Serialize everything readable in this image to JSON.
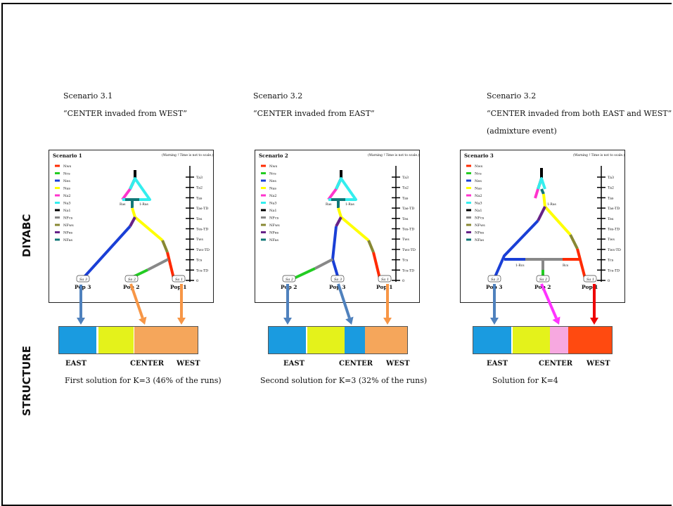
{
  "side_labels": {
    "diyabc": "DIYABC",
    "structure": "STRUCTURE"
  },
  "scenarios": [
    {
      "title": "Scenario 3.1",
      "subtitle": "“CENTER invaded from WEST”",
      "note": "",
      "box_title": "Scenario 1",
      "warning": "(Warning ! Time is not to scale.)",
      "split_labels": [
        "Ras",
        "1-Ras"
      ],
      "admix_labels": [],
      "samples": [
        "Sa 3",
        "Sa 2",
        "Sa 1"
      ],
      "pops": [
        "Pop 3",
        "Pop 2",
        "Pop 1"
      ],
      "solution": "First solution for K=3 (46% of the runs)",
      "bar_labels": [
        "EAST",
        "CENTER",
        "WEST"
      ]
    },
    {
      "title": "Scenario 3.2",
      "subtitle": "“CENTER invaded from EAST”",
      "note": "",
      "box_title": "Scenario 2",
      "warning": "(Warning ! Time is not to scale.)",
      "split_labels": [
        "Ras",
        "1-Ras"
      ],
      "admix_labels": [],
      "samples": [
        "Sa 2",
        "Sa 3",
        "Sa 1"
      ],
      "pops": [
        "Pop 2",
        "Pop 3",
        "Pop 1"
      ],
      "solution": "Second solution for K=3 (32% of the runs)",
      "bar_labels": [
        "EAST",
        "CENTER",
        "WEST"
      ]
    },
    {
      "title": "Scenario 3.2",
      "subtitle": "“CENTER invaded from both EAST and WEST”",
      "note": "(admixture event)",
      "box_title": "Scenario 3",
      "warning": "(Warning ! Time is not to scale.)",
      "split_labels": [
        "",
        "1-Ras"
      ],
      "admix_labels": [
        "1-Rcs",
        "Rcs"
      ],
      "samples": [
        "Sa 3",
        "Sa 2",
        "Sa 1"
      ],
      "pops": [
        "Pop 3",
        "Pop 2",
        "Pop 1"
      ],
      "solution": "Solution for K=4",
      "bar_labels": [
        "EAST",
        "CENTER",
        "WEST"
      ]
    }
  ],
  "legend": [
    {
      "label": "Nws",
      "color": "#ff2a00"
    },
    {
      "label": "Ncs",
      "color": "#22cc22"
    },
    {
      "label": "Nes",
      "color": "#1a3fd6"
    },
    {
      "label": "Nas",
      "color": "#ffff00"
    },
    {
      "label": "Na2",
      "color": "#ff33cc"
    },
    {
      "label": "Na3",
      "color": "#33eeee"
    },
    {
      "label": "Na1",
      "color": "#000000"
    },
    {
      "label": "NFcs",
      "color": "#888888"
    },
    {
      "label": "NFws",
      "color": "#888833"
    },
    {
      "label": "NFes",
      "color": "#662288"
    },
    {
      "label": "NFas",
      "color": "#117777"
    }
  ],
  "timeline": [
    "Ta3",
    "Ta2",
    "Tas",
    "Tas-TD",
    "Tes",
    "Tes-TD",
    "Tws",
    "Tws-TD",
    "Tcs",
    "Tcs-TD",
    "0"
  ],
  "colors": {
    "east_blue": "#1a9be0",
    "center_yellow": "#e4f21b",
    "west_orange": "#f5a65b",
    "center_pink": "#f7a8e0",
    "west_red": "#ff4a10",
    "arrow_blue": "#4f81bd",
    "arrow_orange": "#f79646",
    "arrow_magenta": "#ff33ff",
    "arrow_red": "#ee0000"
  }
}
